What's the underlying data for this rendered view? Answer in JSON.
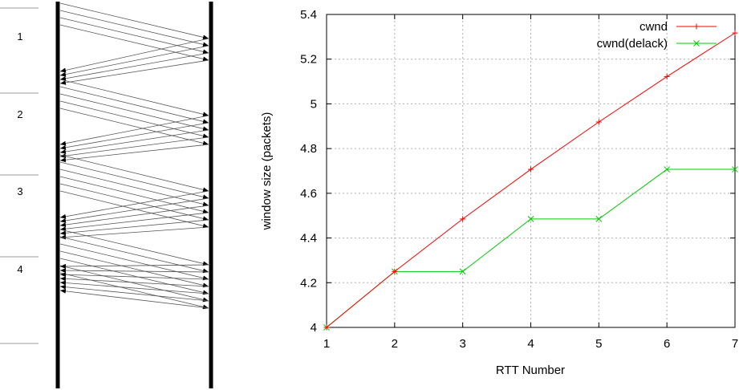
{
  "timeline": {
    "rounds": [
      {
        "label": "1",
        "sent": 4,
        "acked": 4
      },
      {
        "label": "2",
        "sent": 5,
        "acked": 5
      },
      {
        "label": "3",
        "sent": 6,
        "acked": 6
      },
      {
        "label": "4",
        "sent": 7,
        "acked": 7
      }
    ]
  },
  "chart_data": {
    "type": "line",
    "xlabel": "RTT Number",
    "ylabel": "window size (packets)",
    "xlim": [
      1,
      7
    ],
    "ylim": [
      4,
      5.4
    ],
    "xticks": [
      "1",
      "2",
      "3",
      "4",
      "5",
      "6",
      "7"
    ],
    "yticks": [
      "4",
      "4.2",
      "4.4",
      "4.6",
      "4.8",
      "5",
      "5.2",
      "5.4"
    ],
    "grid": true,
    "legend_position": "top-right",
    "x": [
      1,
      2,
      3,
      4,
      5,
      6,
      7
    ],
    "series": [
      {
        "name": "cwnd",
        "color": "#ff0000",
        "marker": "plus",
        "values": [
          4,
          4.25,
          4.485,
          4.707,
          4.919,
          5.122,
          5.317
        ]
      },
      {
        "name": "cwnd(delack)",
        "color": "#00cc00",
        "marker": "cross",
        "values": [
          4,
          4.25,
          4.25,
          4.485,
          4.485,
          4.707,
          4.707
        ]
      }
    ]
  }
}
